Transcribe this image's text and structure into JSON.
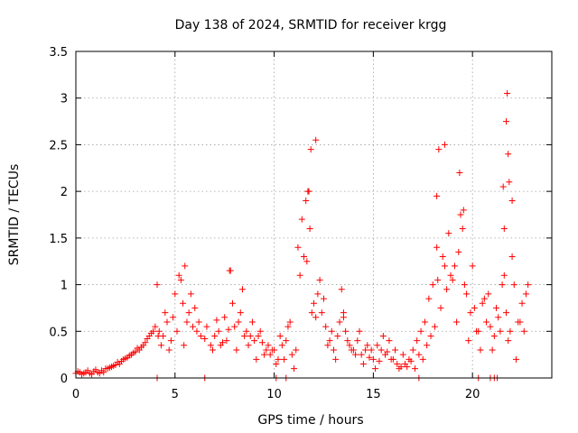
{
  "chart_data": {
    "type": "scatter",
    "title": "Day 138 of 2024, SRMTID for receiver krgg",
    "xlabel": "GPS time / hours",
    "ylabel": "SRMTID / TECUs",
    "xlim": [
      0,
      24
    ],
    "ylim": [
      0,
      3.5
    ],
    "xticks": [
      0,
      5,
      10,
      15,
      20
    ],
    "xtick_labels": [
      "0",
      "5",
      "10",
      "15",
      "20"
    ],
    "yticks": [
      0,
      0.5,
      1,
      1.5,
      2,
      2.5,
      3,
      3.5
    ],
    "ytick_labels": [
      "0",
      "0.5",
      "1",
      "1.5",
      "2",
      "2.5",
      "3",
      "3.5"
    ],
    "grid": true,
    "marker": "+",
    "series": [
      {
        "name": "SRMTID",
        "color": "#ff0000",
        "x": [
          0.0,
          0.2,
          0.4,
          0.6,
          0.8,
          1.0,
          1.2,
          1.4,
          1.6,
          1.8,
          2.0,
          2.2,
          2.4,
          2.6,
          2.8,
          3.0,
          3.2,
          3.4,
          3.6,
          3.8,
          4.0,
          4.1,
          4.2,
          4.4,
          4.6,
          4.8,
          5.0,
          5.2,
          5.4,
          5.5,
          5.7,
          5.9,
          6.0,
          6.2,
          6.5,
          6.8,
          7.0,
          7.2,
          7.4,
          7.6,
          7.8,
          8.0,
          8.2,
          8.4,
          8.6,
          8.8,
          9.0,
          9.2,
          9.4,
          9.6,
          9.8,
          10.0,
          10.2,
          10.4,
          10.6,
          10.8,
          11.0,
          11.2,
          11.4,
          11.6,
          11.7,
          11.8,
          12.0,
          12.2,
          12.4,
          12.6,
          12.8,
          13.0,
          13.2,
          13.4,
          13.6,
          13.8,
          14.0,
          14.2,
          14.4,
          14.6,
          14.8,
          15.0,
          15.2,
          15.4,
          15.6,
          15.8,
          16.0,
          16.2,
          16.4,
          16.6,
          16.8,
          17.0,
          17.2,
          17.4,
          17.6,
          17.8,
          18.0,
          18.2,
          18.3,
          18.5,
          18.7,
          18.9,
          19.1,
          19.3,
          19.5,
          19.7,
          19.9,
          20.1,
          20.3,
          20.5,
          20.7,
          20.9,
          21.1,
          21.3,
          21.5,
          21.7,
          21.9,
          22.1,
          22.3,
          22.5,
          22.7,
          0.1,
          0.3,
          0.5,
          0.7,
          0.9,
          1.1,
          1.3,
          1.5,
          1.7,
          1.9,
          2.1,
          2.3,
          2.5,
          2.7,
          2.9,
          3.1,
          3.3,
          3.5,
          3.7,
          3.9,
          4.3,
          4.5,
          4.7,
          4.9,
          5.1,
          5.3,
          5.6,
          5.8,
          6.1,
          6.3,
          6.6,
          6.9,
          7.1,
          7.3,
          7.5,
          7.7,
          7.9,
          8.1,
          8.3,
          8.5,
          8.7,
          8.9,
          9.1,
          9.3,
          9.5,
          9.7,
          9.9,
          10.1,
          10.3,
          10.5,
          10.7,
          10.9,
          11.1,
          11.3,
          11.5,
          11.9,
          12.1,
          12.3,
          12.5,
          12.7,
          12.9,
          13.1,
          13.3,
          13.5,
          13.7,
          13.9,
          14.1,
          14.3,
          14.5,
          14.7,
          14.9,
          15.1,
          15.3,
          15.5,
          15.7,
          15.9,
          16.1,
          16.3,
          16.5,
          16.7,
          16.9,
          17.1,
          17.3,
          17.5,
          17.7,
          17.9,
          18.1,
          18.4,
          18.6,
          18.8,
          19.0,
          19.2,
          19.4,
          19.6,
          19.8,
          20.0,
          20.2,
          20.4,
          20.6,
          20.8,
          21.0,
          21.2,
          21.4,
          21.6,
          21.8,
          22.0,
          22.2,
          22.4,
          22.6,
          22.8,
          4.15,
          5.45,
          7.75,
          11.65,
          11.75,
          11.85,
          12.1,
          13.5,
          18.2,
          18.25,
          18.6,
          19.35,
          19.55,
          21.6,
          21.7,
          21.75,
          21.8,
          21.85,
          21.55,
          22.0,
          4.1,
          6.5,
          10.1,
          10.6,
          17.3,
          20.3,
          20.9,
          21.1,
          21.25
        ],
        "y": [
          0.05,
          0.06,
          0.05,
          0.08,
          0.04,
          0.09,
          0.05,
          0.06,
          0.1,
          0.12,
          0.14,
          0.15,
          0.2,
          0.22,
          0.25,
          0.28,
          0.3,
          0.35,
          0.42,
          0.48,
          0.55,
          1.0,
          0.5,
          0.45,
          0.6,
          0.4,
          0.9,
          1.1,
          0.8,
          1.2,
          0.7,
          0.55,
          0.75,
          0.6,
          0.42,
          0.35,
          0.45,
          0.5,
          0.38,
          0.4,
          1.15,
          0.55,
          0.6,
          0.95,
          0.5,
          0.45,
          0.4,
          0.45,
          0.38,
          0.3,
          0.25,
          0.3,
          0.2,
          0.35,
          0.4,
          0.6,
          0.1,
          1.4,
          1.7,
          1.9,
          2.0,
          1.6,
          0.8,
          0.9,
          0.7,
          0.55,
          0.4,
          0.3,
          0.45,
          0.95,
          0.5,
          0.35,
          0.3,
          0.4,
          0.25,
          0.3,
          0.22,
          0.2,
          0.35,
          0.3,
          0.25,
          0.4,
          0.2,
          0.15,
          0.12,
          0.15,
          0.2,
          0.3,
          0.4,
          0.5,
          0.6,
          0.85,
          1.0,
          1.4,
          2.45,
          1.3,
          0.95,
          1.1,
          1.2,
          1.35,
          1.6,
          0.9,
          0.7,
          0.75,
          0.5,
          0.8,
          0.6,
          0.55,
          0.45,
          0.65,
          1.0,
          0.7,
          0.5,
          1.0,
          0.6,
          0.8,
          0.9,
          0.07,
          0.04,
          0.06,
          0.05,
          0.07,
          0.06,
          0.08,
          0.1,
          0.11,
          0.13,
          0.17,
          0.18,
          0.21,
          0.24,
          0.27,
          0.32,
          0.33,
          0.38,
          0.45,
          0.5,
          0.35,
          0.7,
          0.3,
          0.65,
          0.5,
          1.05,
          0.6,
          0.9,
          0.5,
          0.45,
          0.55,
          0.3,
          0.62,
          0.35,
          0.65,
          0.52,
          0.8,
          0.3,
          0.7,
          0.45,
          0.35,
          0.6,
          0.2,
          0.5,
          0.25,
          0.35,
          0.3,
          0.15,
          0.45,
          0.2,
          0.55,
          0.25,
          0.3,
          1.1,
          1.3,
          0.7,
          0.65,
          1.05,
          0.85,
          0.35,
          0.5,
          0.2,
          0.6,
          0.7,
          0.4,
          0.3,
          0.25,
          0.5,
          0.15,
          0.35,
          0.3,
          0.1,
          0.18,
          0.45,
          0.28,
          0.2,
          0.3,
          0.1,
          0.25,
          0.12,
          0.18,
          0.1,
          0.25,
          0.2,
          0.35,
          0.45,
          0.55,
          0.75,
          1.2,
          1.55,
          1.05,
          0.6,
          1.75,
          1.0,
          0.4,
          1.2,
          0.5,
          0.3,
          0.85,
          0.9,
          0.3,
          0.75,
          0.5,
          1.1,
          0.4,
          1.3,
          0.2,
          0.6,
          0.5,
          1.0,
          0.45,
          0.35,
          1.15,
          1.25,
          2.0,
          2.45,
          2.55,
          0.65,
          1.95,
          1.05,
          2.5,
          2.2,
          1.8,
          1.6,
          2.75,
          3.05,
          2.4,
          2.1,
          2.05,
          1.9,
          0.0,
          0.0,
          0.0,
          0.0,
          0.0,
          0.0,
          0.0,
          0.0,
          0.0
        ]
      }
    ]
  }
}
